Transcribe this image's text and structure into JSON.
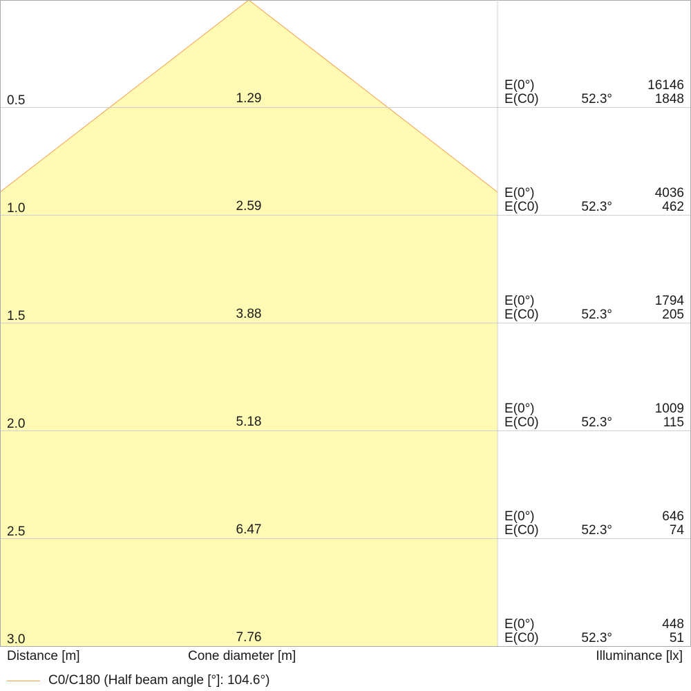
{
  "colors": {
    "cone_fill": "#fffbb5",
    "cone_stroke": "#f5a04a",
    "grid": "#d0d0d0",
    "frame": "#a8a8a8"
  },
  "footer": {
    "distance_label": "Distance [m]",
    "cone_label": "Cone diameter [m]",
    "illuminance_label": "Illuminance [lx]"
  },
  "legend": {
    "text": "C0/C180 (Half beam angle [°]: 104.6°)"
  },
  "chart_data": {
    "type": "table",
    "half_beam_angle_deg": 104.6,
    "columns": [
      "Distance [m]",
      "Cone diameter [m]",
      "Illuminance [lx]"
    ],
    "rows": [
      {
        "distance": "0.5",
        "cone_diameter": "1.29",
        "e0_label": "E(0°)",
        "e0_value": "16146",
        "ec0_label": "E(C0)",
        "ec0_angle": "52.3°",
        "ec0_value": "1848"
      },
      {
        "distance": "1.0",
        "cone_diameter": "2.59",
        "e0_label": "E(0°)",
        "e0_value": "4036",
        "ec0_label": "E(C0)",
        "ec0_angle": "52.3°",
        "ec0_value": "462"
      },
      {
        "distance": "1.5",
        "cone_diameter": "3.88",
        "e0_label": "E(0°)",
        "e0_value": "1794",
        "ec0_label": "E(C0)",
        "ec0_angle": "52.3°",
        "ec0_value": "205"
      },
      {
        "distance": "2.0",
        "cone_diameter": "5.18",
        "e0_label": "E(0°)",
        "e0_value": "1009",
        "ec0_label": "E(C0)",
        "ec0_angle": "52.3°",
        "ec0_value": "115"
      },
      {
        "distance": "2.5",
        "cone_diameter": "6.47",
        "e0_label": "E(0°)",
        "e0_value": "646",
        "ec0_label": "E(C0)",
        "ec0_angle": "52.3°",
        "ec0_value": "74"
      },
      {
        "distance": "3.0",
        "cone_diameter": "7.76",
        "e0_label": "E(0°)",
        "e0_value": "448",
        "ec0_label": "E(C0)",
        "ec0_angle": "52.3°",
        "ec0_value": "51"
      }
    ]
  }
}
